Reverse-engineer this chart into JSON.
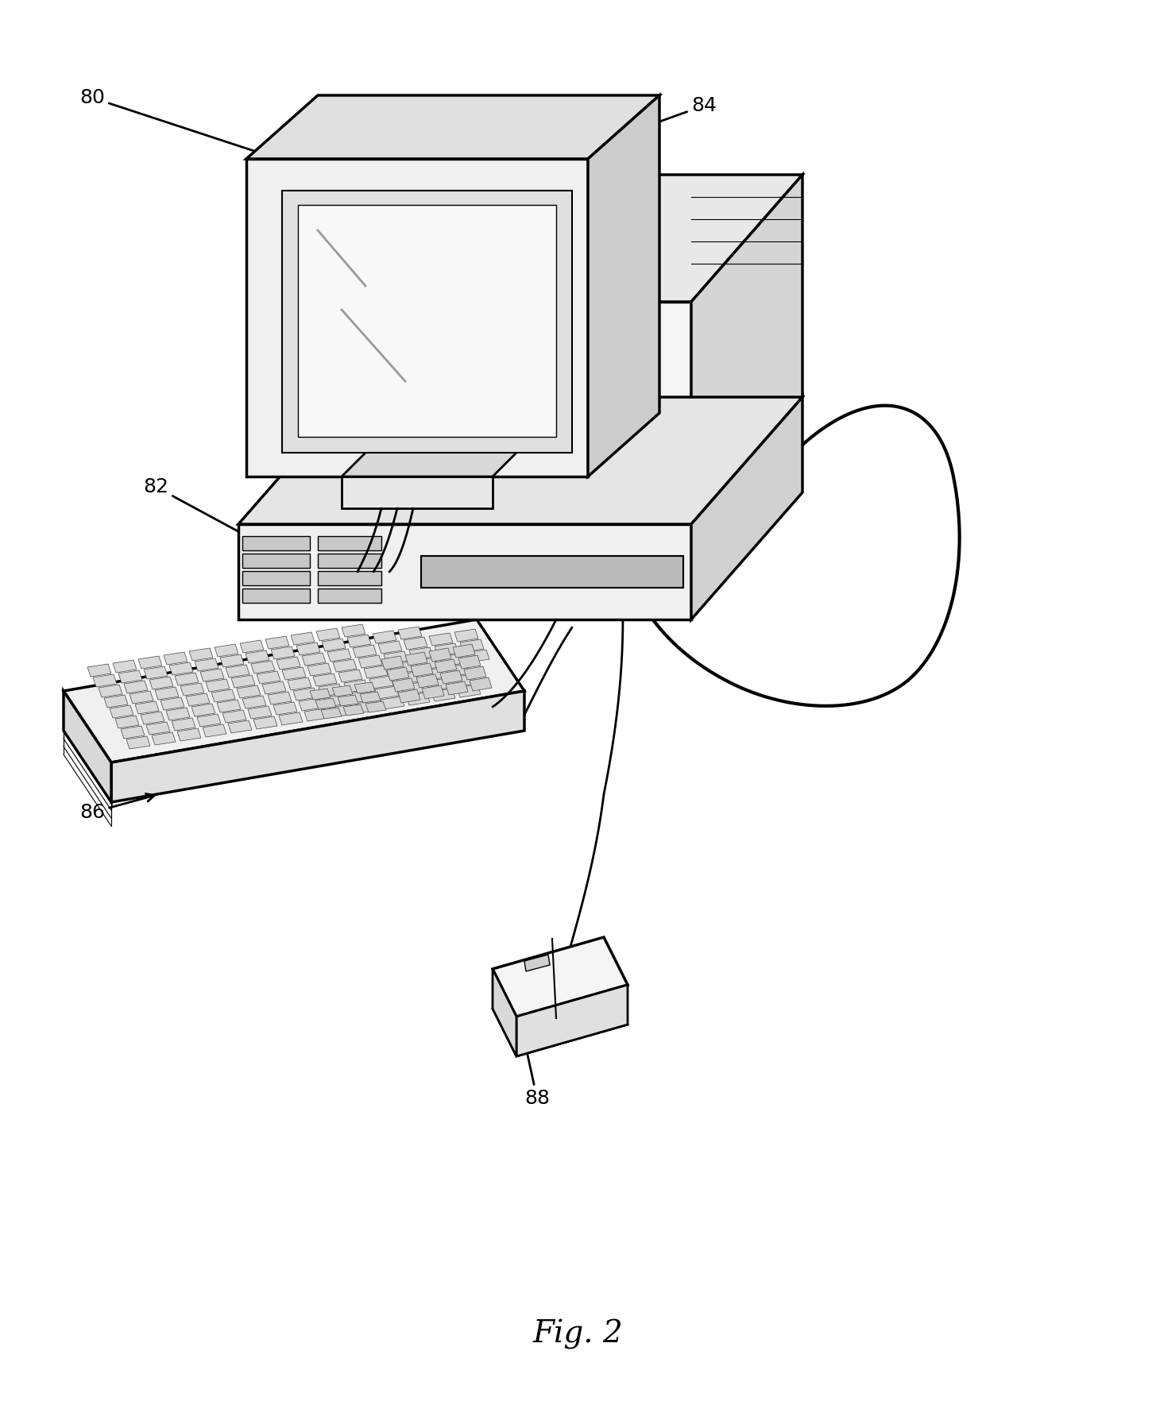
{
  "background_color": "#ffffff",
  "figure_title": "Fig. 2",
  "title_fontsize": 28,
  "title_fontstyle": "italic",
  "label_fontsize": 18,
  "line_color": "#000000",
  "line_width": 2.0
}
